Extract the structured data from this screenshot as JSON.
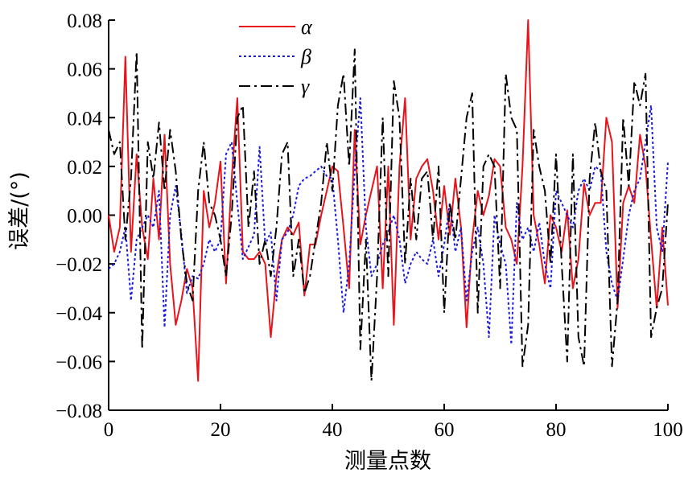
{
  "chart_data": {
    "type": "line",
    "title": "",
    "xlabel": "测量点数",
    "ylabel": "误差/(°)",
    "xlim": [
      0,
      100
    ],
    "ylim": [
      -0.08,
      0.08
    ],
    "x_ticks": [
      0,
      20,
      40,
      60,
      80,
      100
    ],
    "x_tick_labels": [
      "0",
      "20",
      "40",
      "60",
      "80",
      "100"
    ],
    "y_ticks": [
      -0.08,
      -0.06,
      -0.04,
      -0.02,
      0.0,
      0.02,
      0.04,
      0.06,
      0.08
    ],
    "y_tick_labels": [
      "−0.08",
      "−0.06",
      "−0.04",
      "−0.02",
      "0.00",
      "0.02",
      "0.04",
      "0.06",
      "0.08"
    ],
    "grid": false,
    "legend_position": "top-center",
    "x": [
      0,
      1,
      2,
      3,
      4,
      5,
      6,
      7,
      8,
      9,
      10,
      11,
      12,
      13,
      14,
      15,
      16,
      17,
      18,
      19,
      20,
      21,
      22,
      23,
      24,
      25,
      26,
      27,
      28,
      29,
      30,
      31,
      32,
      33,
      34,
      35,
      36,
      37,
      38,
      39,
      40,
      41,
      42,
      43,
      44,
      45,
      46,
      47,
      48,
      49,
      50,
      51,
      52,
      53,
      54,
      55,
      56,
      57,
      58,
      59,
      60,
      61,
      62,
      63,
      64,
      65,
      66,
      67,
      68,
      69,
      70,
      71,
      72,
      73,
      74,
      75,
      76,
      77,
      78,
      79,
      80,
      81,
      82,
      83,
      84,
      85,
      86,
      87,
      88,
      89,
      90,
      91,
      92,
      93,
      94,
      95,
      96,
      97,
      98,
      99,
      100
    ],
    "series": [
      {
        "name": "α",
        "color": "#e8141c",
        "dash": "solid",
        "values": [
          0.0,
          -0.015,
          -0.005,
          0.065,
          -0.015,
          0.025,
          -0.005,
          -0.018,
          0.015,
          -0.01,
          0.033,
          -0.02,
          -0.045,
          -0.035,
          -0.022,
          -0.03,
          -0.068,
          0.01,
          -0.005,
          0.005,
          0.022,
          -0.028,
          0.015,
          0.048,
          -0.015,
          -0.018,
          -0.018,
          -0.015,
          -0.02,
          -0.05,
          -0.025,
          -0.01,
          -0.005,
          -0.008,
          -0.003,
          -0.033,
          -0.012,
          -0.012,
          0.0,
          0.01,
          0.02,
          0.018,
          -0.005,
          -0.03,
          0.035,
          -0.012,
          0.0,
          0.01,
          0.02,
          -0.03,
          0.02,
          -0.045,
          0.02,
          0.048,
          -0.01,
          0.015,
          0.02,
          0.023,
          0.01,
          -0.01,
          0.012,
          -0.008,
          0.015,
          -0.005,
          -0.046,
          -0.01,
          0.01,
          0.0,
          0.008,
          0.023,
          0.02,
          -0.005,
          -0.01,
          -0.02,
          0.02,
          0.08,
          0.0,
          -0.012,
          -0.028,
          0.0,
          -0.005,
          -0.015,
          0.002,
          -0.03,
          -0.018,
          0.013,
          0.0,
          0.005,
          0.005,
          0.04,
          0.03,
          -0.038,
          0.005,
          0.012,
          0.005,
          0.033,
          0.02,
          -0.01,
          -0.038,
          -0.005,
          -0.037
        ]
      },
      {
        "name": "β",
        "color": "#1a1ae0",
        "dash": "dotted",
        "values": [
          -0.022,
          -0.02,
          -0.015,
          -0.005,
          -0.035,
          -0.01,
          -0.005,
          0.0,
          -0.005,
          0.01,
          -0.046,
          0.0,
          0.012,
          -0.008,
          -0.032,
          -0.025,
          -0.026,
          -0.02,
          -0.01,
          -0.015,
          -0.01,
          0.025,
          0.03,
          0.005,
          -0.018,
          -0.013,
          -0.008,
          0.028,
          -0.012,
          -0.007,
          -0.035,
          -0.01,
          -0.007,
          0.0,
          0.012,
          0.015,
          0.016,
          0.018,
          0.02,
          0.016,
          0.015,
          -0.01,
          -0.04,
          -0.02,
          0.018,
          0.048,
          -0.005,
          -0.025,
          -0.02,
          -0.012,
          -0.007,
          0.0,
          -0.01,
          -0.028,
          -0.02,
          -0.015,
          -0.018,
          -0.02,
          -0.01,
          -0.025,
          -0.012,
          0.005,
          -0.015,
          -0.005,
          -0.035,
          -0.015,
          -0.005,
          -0.02,
          -0.05,
          0.0,
          -0.012,
          -0.02,
          -0.053,
          0.005,
          -0.01,
          -0.005,
          -0.015,
          -0.003,
          -0.02,
          -0.03,
          0.01,
          0.005,
          0.0,
          -0.005,
          0.01,
          0.015,
          0.01,
          0.02,
          0.018,
          -0.015,
          -0.028,
          -0.035,
          -0.018,
          0.0,
          0.01,
          0.015,
          0.03,
          0.045,
          -0.005,
          -0.015,
          0.022
        ]
      },
      {
        "name": "γ",
        "color": "#000000",
        "dash": "dashdot",
        "values": [
          0.035,
          0.025,
          0.03,
          -0.01,
          0.015,
          0.067,
          -0.055,
          0.03,
          0.015,
          0.038,
          0.01,
          0.035,
          0.018,
          -0.01,
          -0.028,
          -0.035,
          0.01,
          0.03,
          0.005,
          0.0,
          -0.01,
          -0.025,
          0.0,
          0.04,
          0.045,
          -0.005,
          0.018,
          -0.02,
          -0.01,
          -0.025,
          -0.005,
          0.025,
          0.03,
          -0.025,
          -0.01,
          -0.032,
          -0.025,
          -0.01,
          0.005,
          0.03,
          0.01,
          0.045,
          0.058,
          0.02,
          0.068,
          -0.055,
          -0.01,
          -0.068,
          -0.025,
          0.04,
          -0.025,
          0.055,
          0.04,
          -0.02,
          0.015,
          -0.01,
          0.015,
          0.018,
          -0.01,
          0.02,
          -0.04,
          0.005,
          -0.01,
          0.015,
          0.04,
          0.05,
          -0.04,
          0.02,
          0.025,
          0.02,
          -0.03,
          0.058,
          0.04,
          0.035,
          -0.062,
          -0.045,
          0.035,
          0.02,
          0.01,
          -0.02,
          0.025,
          -0.02,
          -0.06,
          0.025,
          -0.05,
          -0.062,
          0.015,
          0.038,
          0.018,
          0.01,
          -0.062,
          -0.035,
          0.04,
          0.012,
          0.055,
          0.045,
          0.058,
          -0.05,
          -0.038,
          -0.03,
          0.005
        ]
      }
    ]
  }
}
